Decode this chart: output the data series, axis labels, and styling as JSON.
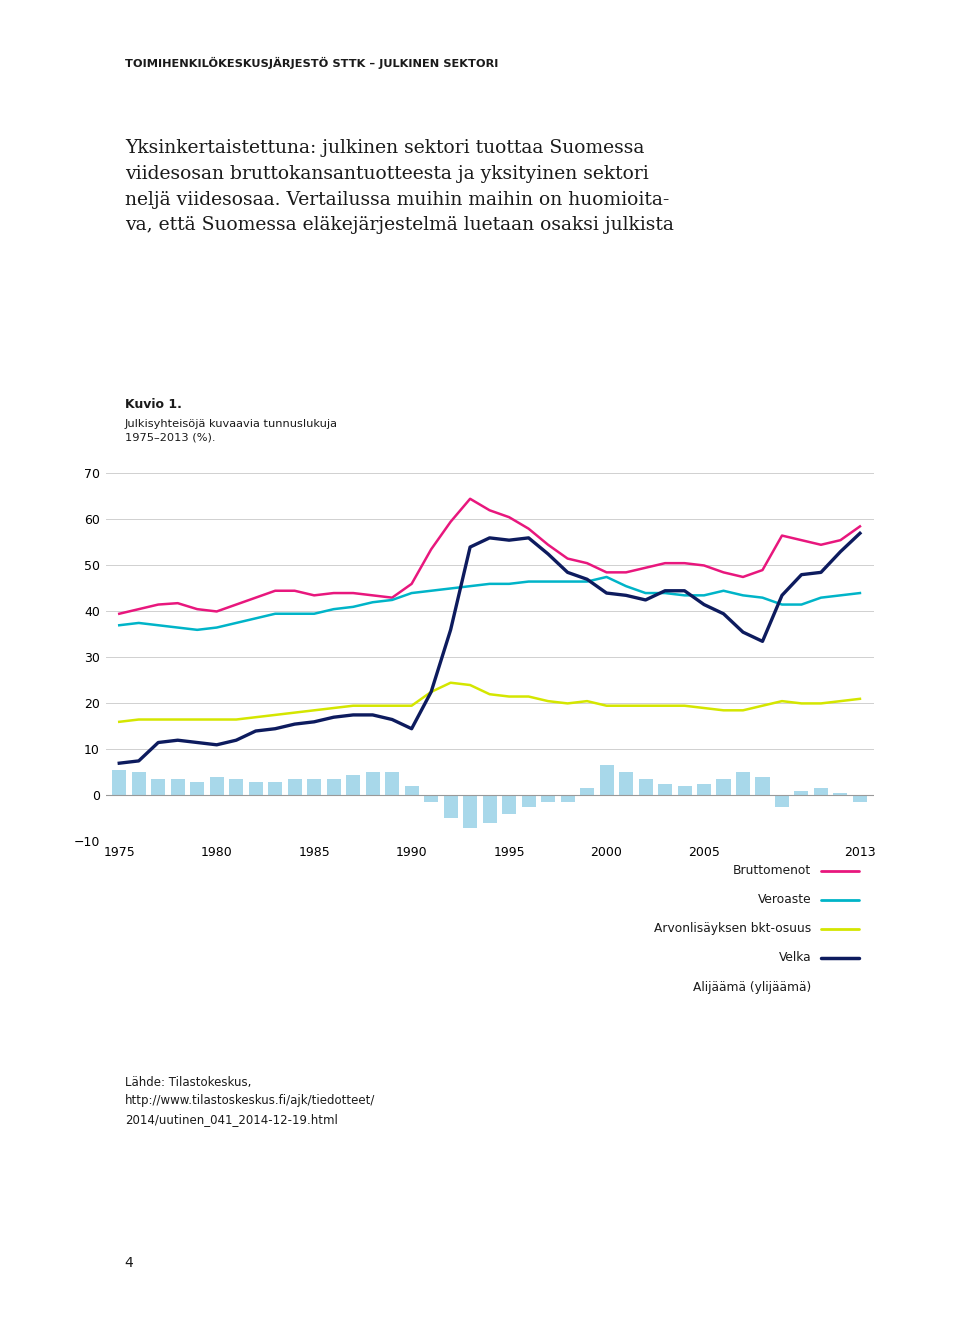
{
  "header": "TOIMIHENKILÖKESKUSJÄRJESTÖ STTK – JULKINEN SEKTORI",
  "intro_text": "Yksinkertaistettuna: julkinen sektori tuottaa Suomessa\nviidesosan bruttokansantuotteesta ja yksityinen sektori\nneljä viidesosaa. Vertailussa muihin maihin on huomioita-\nva, että Suomessa eläkejärjestelmä luetaan osaksi julkista",
  "figure_label": "Kuvio 1.",
  "figure_caption": "Julkisyhteisöjä kuvaavia tunnuslukuja\n1975–2013 (%).",
  "source_text": "Lähde: Tilastokeskus,\nhttp://www.tilastoskeskus.fi/ajk/tiedotteet/\n2014/uutinen_041_2014-12-19.html",
  "page_number": "4",
  "years": [
    1975,
    1976,
    1977,
    1978,
    1979,
    1980,
    1981,
    1982,
    1983,
    1984,
    1985,
    1986,
    1987,
    1988,
    1989,
    1990,
    1991,
    1992,
    1993,
    1994,
    1995,
    1996,
    1997,
    1998,
    1999,
    2000,
    2001,
    2002,
    2003,
    2004,
    2005,
    2006,
    2007,
    2008,
    2009,
    2010,
    2011,
    2012,
    2013
  ],
  "bruttomenot": [
    39.5,
    40.5,
    41.5,
    41.8,
    40.5,
    40.0,
    41.5,
    43.0,
    44.5,
    44.5,
    43.5,
    44.0,
    44.0,
    43.5,
    43.0,
    46.0,
    53.5,
    59.5,
    64.5,
    62.0,
    60.5,
    58.0,
    54.5,
    51.5,
    50.5,
    48.5,
    48.5,
    49.5,
    50.5,
    50.5,
    50.0,
    48.5,
    47.5,
    49.0,
    56.5,
    55.5,
    54.5,
    55.5,
    58.5
  ],
  "veroaste": [
    37.0,
    37.5,
    37.0,
    36.5,
    36.0,
    36.5,
    37.5,
    38.5,
    39.5,
    39.5,
    39.5,
    40.5,
    41.0,
    42.0,
    42.5,
    44.0,
    44.5,
    45.0,
    45.5,
    46.0,
    46.0,
    46.5,
    46.5,
    46.5,
    46.5,
    47.5,
    45.5,
    44.0,
    44.0,
    43.5,
    43.5,
    44.5,
    43.5,
    43.0,
    41.5,
    41.5,
    43.0,
    43.5,
    44.0
  ],
  "arvonlisayksen_bkt": [
    16.0,
    16.5,
    16.5,
    16.5,
    16.5,
    16.5,
    16.5,
    17.0,
    17.5,
    18.0,
    18.5,
    19.0,
    19.5,
    19.5,
    19.5,
    19.5,
    22.5,
    24.5,
    24.0,
    22.0,
    21.5,
    21.5,
    20.5,
    20.0,
    20.5,
    19.5,
    19.5,
    19.5,
    19.5,
    19.5,
    19.0,
    18.5,
    18.5,
    19.5,
    20.5,
    20.0,
    20.0,
    20.5,
    21.0
  ],
  "velka": [
    7.0,
    7.5,
    11.5,
    12.0,
    11.5,
    11.0,
    12.0,
    14.0,
    14.5,
    15.5,
    16.0,
    17.0,
    17.5,
    17.5,
    16.5,
    14.5,
    22.5,
    36.0,
    54.0,
    56.0,
    55.5,
    56.0,
    52.5,
    48.5,
    47.0,
    44.0,
    43.5,
    42.5,
    44.5,
    44.5,
    41.5,
    39.5,
    35.5,
    33.5,
    43.5,
    48.0,
    48.5,
    53.0,
    57.0
  ],
  "alijaamat": [
    5.5,
    5.0,
    3.5,
    3.5,
    3.0,
    4.0,
    3.5,
    3.0,
    3.0,
    3.5,
    3.5,
    3.5,
    4.5,
    5.0,
    5.0,
    2.0,
    -1.5,
    -5.0,
    -7.0,
    -6.0,
    -4.0,
    -2.5,
    -1.5,
    -1.5,
    1.5,
    6.5,
    5.0,
    3.5,
    2.5,
    2.0,
    2.5,
    3.5,
    5.0,
    4.0,
    -2.5,
    1.0,
    1.5,
    0.5,
    -1.5
  ],
  "color_bruttomenot": "#e8177d",
  "color_veroaste": "#00b4c8",
  "color_arvonlisayksen_bkt": "#d4e600",
  "color_velka": "#0d1b5e",
  "color_alijaamat": "#a8d8ea",
  "ylim": [
    -10,
    75
  ],
  "yticks": [
    -10,
    0,
    10,
    20,
    30,
    40,
    50,
    60,
    70
  ],
  "xticks": [
    1975,
    1980,
    1985,
    1990,
    1995,
    2000,
    2005,
    2013
  ],
  "legend_items": [
    "Bruttomenot",
    "Veroaste",
    "Arvonlisäyksen bkt-osuus",
    "Velka",
    "Alijäämä (ylijäämä)"
  ],
  "background_color": "#ffffff",
  "grid_color": "#d0d0d0"
}
